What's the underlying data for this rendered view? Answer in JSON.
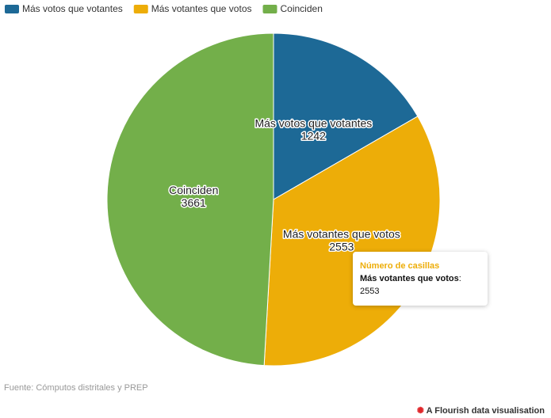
{
  "chart_data": {
    "type": "pie",
    "categories": [
      "Más votos que votantes",
      "Más votantes que votos",
      "Coinciden"
    ],
    "values": [
      1242,
      2553,
      3661
    ],
    "colors": [
      "#1d6996",
      "#edad08",
      "#73af4a"
    ],
    "legend": "top-left",
    "tooltip": {
      "title": "Número de casillas",
      "separator": ":",
      "index": 1
    }
  },
  "footer": {
    "source": "Fuente: Cómputos distritales y PREP",
    "credit": "A Flourish data visualisation"
  }
}
